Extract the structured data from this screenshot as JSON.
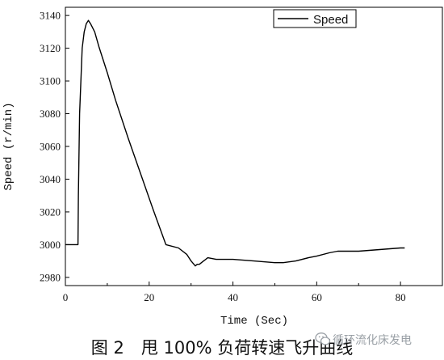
{
  "chart_data": {
    "type": "line",
    "title": "",
    "xlabel": "Time (Sec)",
    "ylabel": "Speed (r/min)",
    "xlim": [
      0,
      90
    ],
    "ylim": [
      2975,
      3145
    ],
    "x_ticks": [
      0,
      20,
      40,
      60,
      80
    ],
    "y_ticks": [
      2980,
      3000,
      3020,
      3040,
      3060,
      3080,
      3100,
      3120,
      3140
    ],
    "grid": false,
    "legend": {
      "position": "top-right",
      "entries": [
        "Speed"
      ]
    },
    "series": [
      {
        "name": "Speed",
        "color": "#000000",
        "x": [
          0,
          3.0,
          3.1,
          3.4,
          4,
          4.5,
          5,
          5.5,
          6,
          7,
          8,
          10,
          12,
          15,
          18,
          21,
          24,
          27,
          29,
          30,
          31,
          31.5,
          32,
          33,
          34,
          36,
          40,
          45,
          50,
          52,
          55,
          58,
          60,
          63,
          65,
          70,
          75,
          80,
          81
        ],
        "y": [
          3000,
          3000,
          3030,
          3080,
          3120,
          3130,
          3135,
          3137,
          3135,
          3130,
          3121,
          3105,
          3088,
          3065,
          3043,
          3021,
          3000,
          2998,
          2994,
          2990,
          2987,
          2988,
          2988,
          2990,
          2992,
          2991,
          2991,
          2990,
          2989,
          2989,
          2990,
          2992,
          2993,
          2995,
          2996,
          2996,
          2997,
          2998,
          2998
        ]
      }
    ]
  },
  "caption": "图 2　甩 100% 负荷转速飞升曲线",
  "watermark": {
    "text": "循环流化床发电",
    "icon": "wechat-icon"
  }
}
